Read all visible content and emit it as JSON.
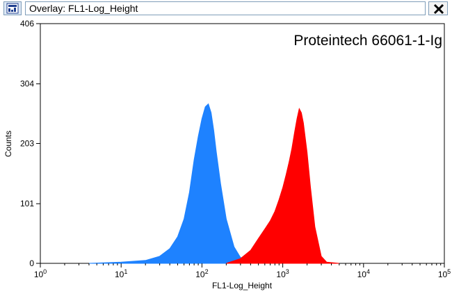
{
  "window": {
    "title": "Overlay: FL1-Log_Height",
    "app_icon": "histogram-window-icon",
    "close_icon": "close-x-icon"
  },
  "chart_data": {
    "type": "area",
    "title": "",
    "xlabel": "FL1-Log_Height",
    "ylabel": "Counts",
    "x_scale": "log",
    "xlim": [
      1,
      100000
    ],
    "ylim": [
      0,
      406
    ],
    "x_ticks": [
      1,
      10,
      100,
      1000,
      10000,
      100000
    ],
    "x_tick_labels": [
      {
        "base": "10",
        "exp": "0"
      },
      {
        "base": "10",
        "exp": "1"
      },
      {
        "base": "10",
        "exp": "2"
      },
      {
        "base": "10",
        "exp": "3"
      },
      {
        "base": "10",
        "exp": "4"
      },
      {
        "base": "10",
        "exp": "5"
      }
    ],
    "y_ticks": [
      0,
      101,
      203,
      304,
      406
    ],
    "y_tick_labels": [
      "0",
      "101",
      "203",
      "304",
      "406"
    ],
    "annotation": "Proteintech 66061-1-Ig",
    "grid": false,
    "series": [
      {
        "color": "#1e82ff",
        "x": [
          4,
          10,
          20,
          30,
          40,
          50,
          60,
          70,
          80,
          90,
          100,
          110,
          120,
          130,
          140,
          150,
          170,
          200,
          250,
          300,
          400,
          600
        ],
        "y": [
          0,
          2,
          5,
          12,
          25,
          45,
          75,
          120,
          175,
          215,
          245,
          265,
          270,
          255,
          225,
          190,
          135,
          75,
          28,
          10,
          3,
          0
        ]
      },
      {
        "color": "#ff0000",
        "x": [
          200,
          300,
          400,
          500,
          600,
          700,
          800,
          900,
          1000,
          1100,
          1200,
          1300,
          1400,
          1500,
          1600,
          1700,
          1800,
          2000,
          2200,
          2500,
          3000,
          3500,
          5000
        ],
        "y": [
          0,
          8,
          22,
          42,
          58,
          72,
          88,
          108,
          128,
          150,
          172,
          195,
          222,
          245,
          262,
          255,
          238,
          188,
          130,
          62,
          12,
          2,
          0
        ]
      }
    ]
  }
}
